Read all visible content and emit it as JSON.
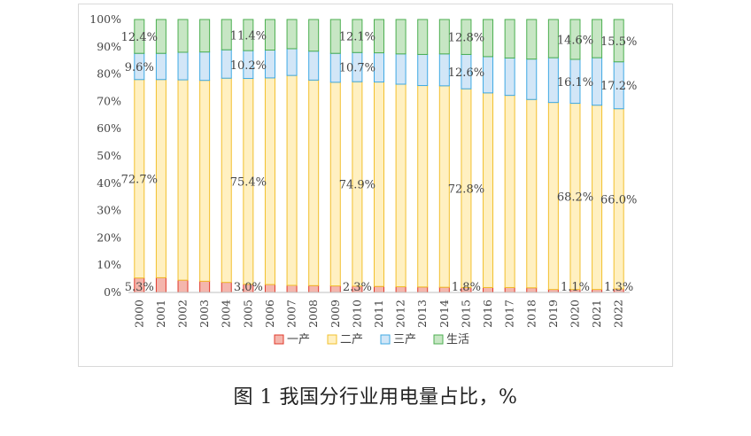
{
  "caption": "图 1  我国分行业用电量占比，%",
  "chart_data": {
    "type": "bar",
    "stacked": true,
    "title": "",
    "xlabel": "",
    "ylabel": "",
    "ylim": [
      0,
      100
    ],
    "yticks": [
      "0%",
      "10%",
      "20%",
      "30%",
      "40%",
      "50%",
      "60%",
      "70%",
      "80%",
      "90%",
      "100%"
    ],
    "grid": false,
    "legend_position": "bottom",
    "categories": [
      "2000",
      "2001",
      "2002",
      "2003",
      "2004",
      "2005",
      "2006",
      "2007",
      "2008",
      "2009",
      "2010",
      "2011",
      "2012",
      "2013",
      "2014",
      "2015",
      "2016",
      "2017",
      "2018",
      "2019",
      "2020",
      "2021",
      "2022"
    ],
    "series": [
      {
        "name": "一产",
        "fill": "#f4b6ad",
        "stroke": "#e0392b",
        "values": [
          5.3,
          5.4,
          4.5,
          4.1,
          3.7,
          3.0,
          2.9,
          2.6,
          2.5,
          2.4,
          2.3,
          2.2,
          2.1,
          2.0,
          1.9,
          1.8,
          1.8,
          1.8,
          1.7,
          1.1,
          1.1,
          1.1,
          1.3
        ]
      },
      {
        "name": "二产",
        "fill": "#fff0c1",
        "stroke": "#f2c02e",
        "values": [
          72.7,
          72.6,
          73.4,
          73.6,
          74.8,
          75.4,
          75.7,
          76.9,
          75.3,
          74.6,
          74.9,
          74.9,
          74.2,
          73.8,
          73.8,
          72.8,
          71.3,
          70.4,
          69.0,
          68.5,
          68.2,
          67.5,
          66.0
        ]
      },
      {
        "name": "三产",
        "fill": "#d2e6f7",
        "stroke": "#3fa9e3",
        "values": [
          9.6,
          9.6,
          10.1,
          10.4,
          10.4,
          10.2,
          10.2,
          9.8,
          10.6,
          10.6,
          10.7,
          10.7,
          11.1,
          11.4,
          11.7,
          12.6,
          13.3,
          13.7,
          14.8,
          16.4,
          16.1,
          17.4,
          17.2
        ]
      },
      {
        "name": "生活",
        "fill": "#c7e6c4",
        "stroke": "#4caf50",
        "values": [
          12.4,
          12.4,
          12.0,
          11.9,
          11.1,
          11.4,
          11.2,
          10.7,
          11.6,
          12.4,
          12.1,
          12.2,
          12.6,
          12.8,
          12.6,
          12.8,
          13.6,
          14.1,
          14.5,
          14.0,
          14.6,
          14.0,
          15.5
        ]
      }
    ],
    "data_labels": [
      {
        "series": 0,
        "index": 0,
        "text": "5.3%"
      },
      {
        "series": 0,
        "index": 5,
        "text": "3.0%"
      },
      {
        "series": 0,
        "index": 10,
        "text": "2.3%"
      },
      {
        "series": 0,
        "index": 15,
        "text": "1.8%"
      },
      {
        "series": 0,
        "index": 20,
        "text": "1.1%"
      },
      {
        "series": 0,
        "index": 22,
        "text": "1.3%"
      },
      {
        "series": 1,
        "index": 0,
        "text": "72.7%"
      },
      {
        "series": 1,
        "index": 5,
        "text": "75.4%"
      },
      {
        "series": 1,
        "index": 10,
        "text": "74.9%"
      },
      {
        "series": 1,
        "index": 15,
        "text": "72.8%"
      },
      {
        "series": 1,
        "index": 20,
        "text": "68.2%"
      },
      {
        "series": 1,
        "index": 22,
        "text": "66.0%"
      },
      {
        "series": 2,
        "index": 0,
        "text": "9.6%"
      },
      {
        "series": 2,
        "index": 5,
        "text": "10.2%"
      },
      {
        "series": 2,
        "index": 10,
        "text": "10.7%"
      },
      {
        "series": 2,
        "index": 15,
        "text": "12.6%"
      },
      {
        "series": 2,
        "index": 20,
        "text": "16.1%"
      },
      {
        "series": 2,
        "index": 22,
        "text": "17.2%"
      },
      {
        "series": 3,
        "index": 0,
        "text": "12.4%"
      },
      {
        "series": 3,
        "index": 5,
        "text": "11.4%"
      },
      {
        "series": 3,
        "index": 10,
        "text": "12.1%"
      },
      {
        "series": 3,
        "index": 15,
        "text": "12.8%"
      },
      {
        "series": 3,
        "index": 20,
        "text": "14.6%"
      },
      {
        "series": 3,
        "index": 22,
        "text": "15.5%"
      }
    ]
  }
}
